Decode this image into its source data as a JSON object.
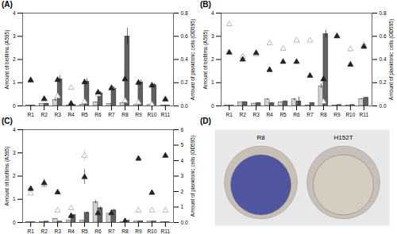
{
  "chart_data": [
    {
      "type": "bar",
      "title": "(A)",
      "categories": [
        "R1",
        "R2",
        "R3",
        "R4",
        "R5",
        "R6",
        "R7",
        "R8",
        "R9",
        "R10",
        "R11"
      ],
      "ylabel": "Amount of biofilms (A595)",
      "y2label": "Amount of planktonic cells (OD595)",
      "ylim": [
        0,
        4
      ],
      "yticks": [
        0,
        1,
        2,
        3,
        4
      ],
      "y2lim": [
        0,
        0.8
      ],
      "y2ticks": [
        {
          "value": 0,
          "label": "0.0"
        },
        0.2,
        0.4,
        0.6,
        0.8
      ],
      "series": [
        {
          "type": "bar",
          "color": "#d3d3d3",
          "values": [
            0.02,
            0.08,
            0.25,
            0.02,
            0.05,
            0.15,
            0.08,
            0.12,
            0.04,
            0.04,
            0.01
          ],
          "errors": [
            0.005,
            0.01,
            0.05,
            0.005,
            0.01,
            0.02,
            0.01,
            0.01,
            0.01,
            0.01,
            0.005
          ]
        },
        {
          "type": "bar",
          "color": "#606060",
          "values": [
            0.02,
            0.1,
            1.15,
            0.05,
            1.05,
            0.55,
            0.75,
            3.0,
            1.02,
            0.9,
            0.02
          ],
          "errors": [
            0.005,
            0.01,
            0.15,
            0.01,
            0.12,
            0.07,
            0.08,
            0.35,
            0.1,
            0.08,
            0.005
          ]
        },
        {
          "type": "scatter",
          "marker": "triangle-open",
          "color": "#aaaaaa",
          "values": [
            1.12,
            0.28,
            0.42,
            0.78,
            0.18,
            0.5,
            0.8,
            0.22,
            0.15,
            0.06,
            0.28
          ],
          "errors": [
            0.04,
            0.02,
            0.03,
            0.03,
            0.01,
            0.02,
            0.03,
            0.01,
            0.01,
            0.01,
            0.01
          ]
        },
        {
          "type": "scatter",
          "marker": "triangle",
          "color": "#222222",
          "values": [
            1.1,
            0.3,
            1.12,
            0.1,
            1.02,
            0.58,
            0.76,
            1.15,
            1.0,
            0.88,
            0.28
          ],
          "errors": [
            0.03,
            0.02,
            0.04,
            0.01,
            0.04,
            0.02,
            0.03,
            0.04,
            0.03,
            0.03,
            0.01
          ]
        }
      ]
    },
    {
      "type": "bar",
      "title": "(B)",
      "categories": [
        "R1",
        "R2",
        "R3",
        "R4",
        "R5",
        "R6",
        "R7",
        "R8",
        "R9",
        "R10",
        "R11"
      ],
      "ylabel": "Amount of biofilms (A595)",
      "y2label": "Amount of planktonic cells (OD595)",
      "ylim": [
        0,
        4
      ],
      "yticks": [
        0,
        1,
        2,
        3,
        4
      ],
      "y2lim": [
        0,
        0.8
      ],
      "y2ticks": [
        {
          "value": 0,
          "label": "0.0"
        },
        0.2,
        0.4,
        0.6,
        0.8
      ],
      "series": [
        {
          "type": "bar",
          "color": "#d3d3d3",
          "values": [
            0.01,
            0.15,
            0.1,
            0.28,
            0.16,
            0.28,
            0.02,
            0.85,
            0.02,
            0.01,
            0.3
          ],
          "errors": [
            0.005,
            0.01,
            0.01,
            0.03,
            0.01,
            0.04,
            0.005,
            0.1,
            0.005,
            0.005,
            0.02
          ]
        },
        {
          "type": "bar",
          "color": "#606060",
          "values": [
            0.01,
            0.17,
            0.13,
            0.13,
            0.2,
            0.2,
            0.13,
            3.1,
            0.04,
            0.04,
            0.35
          ],
          "errors": [
            0.005,
            0.01,
            0.01,
            0.01,
            0.02,
            0.18,
            0.01,
            0.16,
            0.005,
            0.005,
            0.02
          ]
        },
        {
          "type": "scatter",
          "marker": "triangle-open",
          "color": "#aaaaaa",
          "values": [
            3.52,
            2.12,
            2.22,
            2.7,
            2.46,
            2.82,
            2.82,
            0.18,
            3.02,
            2.44,
            2.62
          ],
          "errors": [
            0.07,
            0.04,
            0.04,
            0.05,
            0.05,
            0.05,
            0.05,
            0.01,
            0.05,
            0.04,
            0.04
          ]
        },
        {
          "type": "scatter",
          "marker": "triangle",
          "color": "#222222",
          "values": [
            2.3,
            2.0,
            2.28,
            1.55,
            1.9,
            1.9,
            1.3,
            1.15,
            3.0,
            1.78,
            2.55
          ],
          "errors": [
            0.04,
            0.03,
            0.04,
            0.03,
            0.03,
            0.03,
            0.02,
            0.03,
            0.04,
            0.03,
            0.03
          ]
        }
      ]
    },
    {
      "type": "bar",
      "title": "(C)",
      "categories": [
        "R1",
        "R2",
        "R3",
        "R4",
        "R5",
        "R6",
        "R7",
        "R8",
        "R9",
        "R10",
        "R11"
      ],
      "ylabel": "Amount of biofilms (A595)",
      "y2label": "Amount of planktonic cells (OD595)",
      "ylim": [
        0,
        4
      ],
      "yticks": [
        0,
        1,
        2,
        3,
        4
      ],
      "y2lim": [
        0,
        6.0
      ],
      "y2ticks": [
        {
          "value": 0,
          "label": "0.0"
        },
        1,
        2,
        3,
        4,
        5,
        6
      ],
      "series": [
        {
          "type": "bar",
          "color": "#d3d3d3",
          "values": [
            0.01,
            0.01,
            0.16,
            0.08,
            0.08,
            0.88,
            0.38,
            0.01,
            0.04,
            0.04,
            0.01
          ],
          "errors": [
            0.005,
            0.005,
            0.01,
            0.01,
            0.01,
            0.07,
            0.03,
            0.005,
            0.005,
            0.005,
            0.005
          ]
        },
        {
          "type": "bar",
          "color": "#606060",
          "values": [
            0.01,
            0.04,
            0.04,
            0.32,
            0.42,
            0.62,
            0.52,
            0.08,
            0.06,
            0.05,
            0.01
          ],
          "errors": [
            0.005,
            0.005,
            0.005,
            0.03,
            0.04,
            0.06,
            0.05,
            0.005,
            0.005,
            0.005,
            0.005
          ]
        },
        {
          "type": "scatter",
          "marker": "triangle-open",
          "color": "#aaaaaa",
          "values": [
            1.25,
            1.62,
            0.52,
            0.62,
            2.88,
            0.42,
            0.4,
            0.04,
            0.52,
            0.52,
            0.52
          ],
          "errors": [
            0.1,
            0.14,
            0.02,
            0.03,
            0.22,
            0.02,
            0.02,
            0.005,
            0.03,
            0.03,
            0.03
          ]
        },
        {
          "type": "scatter",
          "marker": "triangle",
          "color": "#222222",
          "values": [
            1.45,
            1.7,
            1.3,
            0.28,
            1.96,
            0.4,
            0.4,
            0.06,
            2.75,
            1.28,
            2.88
          ],
          "errors": [
            0.11,
            0.16,
            0.09,
            0.02,
            0.32,
            0.02,
            0.02,
            0.005,
            0.11,
            0.09,
            0.11
          ]
        }
      ]
    },
    {
      "type": "image",
      "title": "(D)",
      "categories": [
        "R8",
        "H152T"
      ],
      "colors": [
        "#5055a0",
        "#d5cdc0"
      ]
    }
  ]
}
